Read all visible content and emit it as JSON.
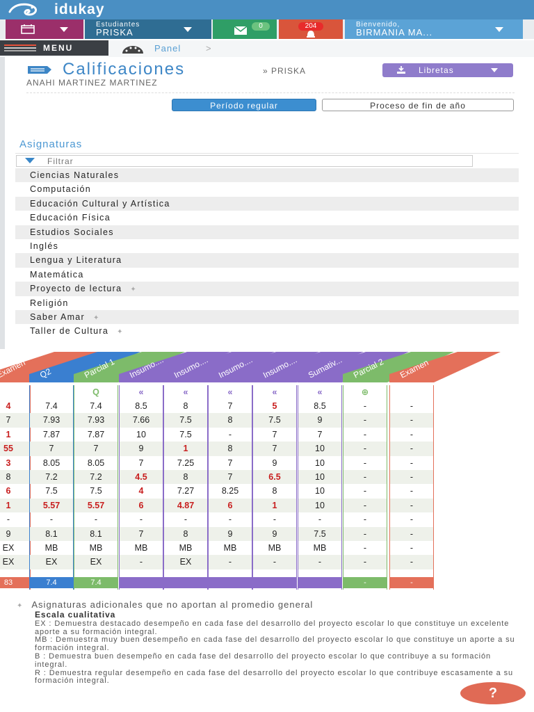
{
  "brand": {
    "name": "idukay"
  },
  "nav": {
    "students_small": "Estudiantes",
    "students_name": "PRISKA",
    "messages_count": "0",
    "notifications_count": "204",
    "welcome_small": "Bienvenido,",
    "welcome_name": "BIRMANIA MA..."
  },
  "menu": {
    "label": "MENU"
  },
  "breadcrumb": {
    "label": "Panel",
    "sep": ">"
  },
  "page": {
    "title": "Calificaciones",
    "sub": "» PRISKA",
    "student": "ANAHI MARTINEZ MARTINEZ",
    "libretas": "Libretas",
    "tab_regular": "Período regular",
    "tab_fin": "Proceso de fin de año"
  },
  "asignaturas": {
    "heading": "Asignaturas",
    "filter_placeholder": "Filtrar",
    "items": [
      {
        "label": "Ciencias Naturales"
      },
      {
        "label": "Computación"
      },
      {
        "label": "Educación Cultural y Artística"
      },
      {
        "label": "Educación Física"
      },
      {
        "label": "Estudios Sociales"
      },
      {
        "label": "Inglés"
      },
      {
        "label": "Lengua y Literatura"
      },
      {
        "label": "Matemática"
      },
      {
        "label": "Proyecto de lectura",
        "pin": "✦"
      },
      {
        "label": "Religión"
      },
      {
        "label": "Saber Amar",
        "pin": "✦"
      },
      {
        "label": "Taller de Cultura",
        "pin": "✦"
      }
    ]
  },
  "grades": {
    "columns": [
      {
        "header": "Examen",
        "color": "#e4705a",
        "cells": [
          "4",
          "7",
          "1",
          "55",
          "3",
          "8",
          "6",
          "1",
          "-",
          "9",
          "EX",
          "EX"
        ],
        "red": [
          0,
          2,
          3,
          4,
          6,
          7
        ],
        "footer": "83"
      },
      {
        "header": "Q2",
        "color": "#3a7fd0",
        "cells": [
          "7.4",
          "7.93",
          "7.87",
          "7",
          "8.05",
          "7.2",
          "7.5",
          "5.57",
          "-",
          "8.1",
          "MB",
          "EX"
        ],
        "red": [
          7
        ],
        "footer": "7.4"
      },
      {
        "header": "Parcial 1",
        "color": "#7dbb6a",
        "icon": "Q",
        "cells": [
          "7.4",
          "7.93",
          "7.87",
          "7",
          "8.05",
          "7.2",
          "7.5",
          "5.57",
          "-",
          "8.1",
          "MB",
          "EX"
        ],
        "red": [
          7
        ],
        "footer": "7.4"
      },
      {
        "header": "Insumo....",
        "color": "#8a6cc8",
        "icon": "«",
        "cells": [
          "8.5",
          "7.66",
          "10",
          "9",
          "7",
          "4.5",
          "4",
          "6",
          "-",
          "7",
          "MB",
          "-"
        ],
        "red": [
          5,
          6,
          7
        ],
        "footer": ""
      },
      {
        "header": "Insumo....",
        "color": "#8a6cc8",
        "icon": "«",
        "cells": [
          "8",
          "7.5",
          "7.5",
          "1",
          "7.25",
          "8",
          "7.27",
          "4.87",
          "-",
          "8",
          "MB",
          "EX"
        ],
        "red": [
          3,
          7
        ],
        "footer": ""
      },
      {
        "header": "Insumo....",
        "color": "#8a6cc8",
        "icon": "«",
        "cells": [
          "7",
          "8",
          "-",
          "8",
          "7",
          "7",
          "8.25",
          "6",
          "-",
          "9",
          "MB",
          "-"
        ],
        "red": [
          7
        ],
        "footer": ""
      },
      {
        "header": "Insumo....",
        "color": "#8a6cc8",
        "icon": "«",
        "cells": [
          "5",
          "7.5",
          "7",
          "7",
          "9",
          "6.5",
          "8",
          "1",
          "-",
          "9",
          "MB",
          "-"
        ],
        "red": [
          0,
          5,
          7
        ],
        "footer": ""
      },
      {
        "header": "Sumativ...",
        "color": "#8a6cc8",
        "icon": "«",
        "cells": [
          "8.5",
          "9",
          "7",
          "10",
          "10",
          "10",
          "10",
          "10",
          "-",
          "7.5",
          "MB",
          "-"
        ],
        "red": [],
        "footer": ""
      },
      {
        "header": "Parcial 2",
        "color": "#7dbb6a",
        "icon": "⊕",
        "cells": [
          "-",
          "-",
          "-",
          "-",
          "-",
          "-",
          "-",
          "-",
          "-",
          "-",
          "-",
          "-"
        ],
        "red": [],
        "footer": "-"
      },
      {
        "header": "Examen",
        "color": "#e4705a",
        "cells": [
          "-",
          "-",
          "-",
          "-",
          "-",
          "-",
          "-",
          "-",
          "-",
          "-",
          "-",
          "-"
        ],
        "red": [],
        "footer": "-"
      }
    ]
  },
  "footer": {
    "additional": "Asignaturas adicionales que no aportan al promedio general",
    "escala_title": "Escala cualitativa",
    "ex": "EX : Demuestra destacado desempeño en cada fase del desarrollo del proyecto escolar lo que constituye un excelente aporte a su formación integral.",
    "mb": "MB : Demuestra muy buen desempeño en cada fase del desarrollo del proyecto escolar lo que constituye un aporte a su formación integral.",
    "b": "B : Demuestra buen desempeño en cada fase del desarrollo del proyecto escolar lo que contribuye a su formación integral.",
    "r": "R : Demuestra regular desempeño en cada fase del desarrollo del proyecto escolar lo que contribuye escasamente a su formación integral.",
    "help": "?"
  }
}
